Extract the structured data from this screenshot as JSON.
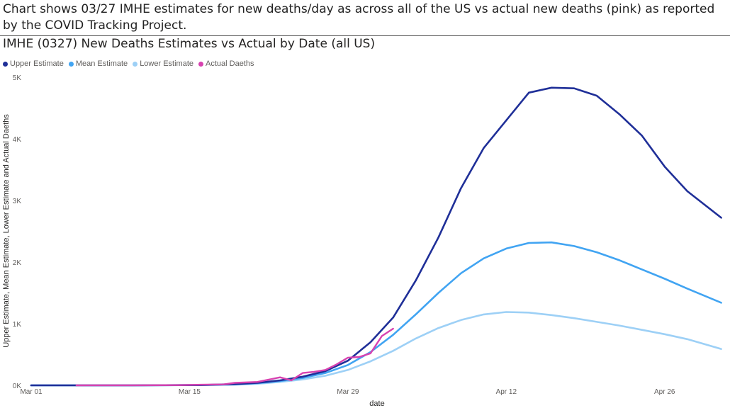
{
  "caption": "Chart shows 03/27 IMHE estimates for new deaths/day as across all of the US vs actual new deaths (pink) as reported by the COVID Tracking Project.",
  "chart_data": {
    "type": "line",
    "title": "IMHE (0327) New Deaths Estimates vs Actual by Date (all US)",
    "xlabel": "date",
    "ylabel": "Upper Estimate, Mean Estimate, Lower Estimate and Actual Daeths",
    "x_ticks": [
      "Mar 01",
      "Mar 15",
      "Mar 29",
      "Apr 12",
      "Apr 26"
    ],
    "y_ticks": [
      "0K",
      "1K",
      "2K",
      "3K",
      "4K",
      "5K"
    ],
    "ylim": [
      0,
      5000
    ],
    "grid": false,
    "legend_position": "top-left",
    "series": [
      {
        "name": "Upper Estimate",
        "color": "#1f2f98",
        "points": [
          [
            "2020-03-01",
            0
          ],
          [
            "2020-03-10",
            0
          ],
          [
            "2020-03-16",
            5
          ],
          [
            "2020-03-19",
            20
          ],
          [
            "2020-03-21",
            40
          ],
          [
            "2020-03-23",
            80
          ],
          [
            "2020-03-25",
            140
          ],
          [
            "2020-03-27",
            230
          ],
          [
            "2020-03-29",
            400
          ],
          [
            "2020-03-31",
            700
          ],
          [
            "2020-04-02",
            1100
          ],
          [
            "2020-04-04",
            1700
          ],
          [
            "2020-04-06",
            2400
          ],
          [
            "2020-04-08",
            3200
          ],
          [
            "2020-04-10",
            3850
          ],
          [
            "2020-04-12",
            4300
          ],
          [
            "2020-04-14",
            4750
          ],
          [
            "2020-04-16",
            4830
          ],
          [
            "2020-04-18",
            4820
          ],
          [
            "2020-04-20",
            4700
          ],
          [
            "2020-04-22",
            4400
          ],
          [
            "2020-04-24",
            4050
          ],
          [
            "2020-04-26",
            3550
          ],
          [
            "2020-04-28",
            3150
          ],
          [
            "2020-05-01",
            2720
          ]
        ]
      },
      {
        "name": "Mean Estimate",
        "color": "#41a4f2",
        "points": [
          [
            "2020-03-01",
            0
          ],
          [
            "2020-03-10",
            0
          ],
          [
            "2020-03-16",
            5
          ],
          [
            "2020-03-19",
            15
          ],
          [
            "2020-03-21",
            35
          ],
          [
            "2020-03-23",
            70
          ],
          [
            "2020-03-25",
            120
          ],
          [
            "2020-03-27",
            200
          ],
          [
            "2020-03-29",
            330
          ],
          [
            "2020-03-31",
            540
          ],
          [
            "2020-04-02",
            820
          ],
          [
            "2020-04-04",
            1150
          ],
          [
            "2020-04-06",
            1500
          ],
          [
            "2020-04-08",
            1820
          ],
          [
            "2020-04-10",
            2060
          ],
          [
            "2020-04-12",
            2220
          ],
          [
            "2020-04-14",
            2310
          ],
          [
            "2020-04-16",
            2320
          ],
          [
            "2020-04-18",
            2260
          ],
          [
            "2020-04-20",
            2160
          ],
          [
            "2020-04-22",
            2030
          ],
          [
            "2020-04-24",
            1880
          ],
          [
            "2020-04-26",
            1730
          ],
          [
            "2020-04-28",
            1570
          ],
          [
            "2020-05-01",
            1340
          ]
        ]
      },
      {
        "name": "Lower Estimate",
        "color": "#9dd0f6",
        "points": [
          [
            "2020-03-01",
            0
          ],
          [
            "2020-03-10",
            0
          ],
          [
            "2020-03-16",
            5
          ],
          [
            "2020-03-19",
            10
          ],
          [
            "2020-03-21",
            25
          ],
          [
            "2020-03-23",
            55
          ],
          [
            "2020-03-25",
            95
          ],
          [
            "2020-03-27",
            155
          ],
          [
            "2020-03-29",
            250
          ],
          [
            "2020-03-31",
            390
          ],
          [
            "2020-04-02",
            560
          ],
          [
            "2020-04-04",
            760
          ],
          [
            "2020-04-06",
            930
          ],
          [
            "2020-04-08",
            1060
          ],
          [
            "2020-04-10",
            1150
          ],
          [
            "2020-04-12",
            1190
          ],
          [
            "2020-04-14",
            1180
          ],
          [
            "2020-04-16",
            1140
          ],
          [
            "2020-04-18",
            1090
          ],
          [
            "2020-04-20",
            1030
          ],
          [
            "2020-04-22",
            970
          ],
          [
            "2020-04-24",
            900
          ],
          [
            "2020-04-26",
            830
          ],
          [
            "2020-04-28",
            750
          ],
          [
            "2020-05-01",
            590
          ]
        ]
      },
      {
        "name": "Actual Daeths",
        "color": "#d742b0",
        "points": [
          [
            "2020-03-05",
            0
          ],
          [
            "2020-03-10",
            1
          ],
          [
            "2020-03-14",
            4
          ],
          [
            "2020-03-16",
            10
          ],
          [
            "2020-03-18",
            15
          ],
          [
            "2020-03-19",
            40
          ],
          [
            "2020-03-21",
            55
          ],
          [
            "2020-03-23",
            130
          ],
          [
            "2020-03-24",
            80
          ],
          [
            "2020-03-25",
            200
          ],
          [
            "2020-03-26",
            220
          ],
          [
            "2020-03-27",
            250
          ],
          [
            "2020-03-28",
            340
          ],
          [
            "2020-03-29",
            450
          ],
          [
            "2020-03-30",
            460
          ],
          [
            "2020-03-31",
            520
          ],
          [
            "2020-04-01",
            800
          ],
          [
            "2020-04-02",
            920
          ]
        ]
      }
    ]
  }
}
